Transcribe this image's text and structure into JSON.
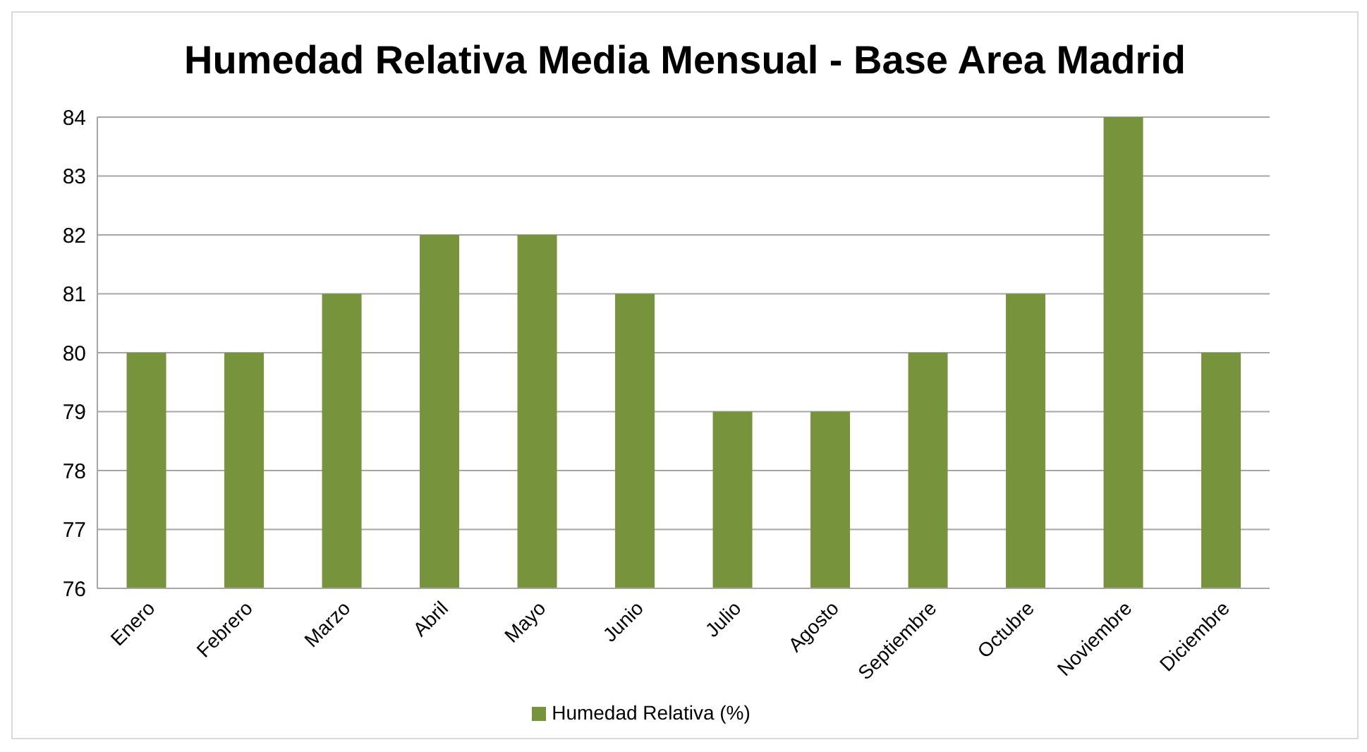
{
  "chart_data": {
    "type": "bar",
    "title": "Humedad Relativa Media Mensual - Base Area Madrid",
    "categories": [
      "Enero",
      "Febrero",
      "Marzo",
      "Abril",
      "Mayo",
      "Junio",
      "Julio",
      "Agosto",
      "Septiembre",
      "Octubre",
      "Noviembre",
      "Diciembre"
    ],
    "series": [
      {
        "name": "Humedad Relativa (%)",
        "color": "#77933c",
        "values": [
          80,
          80,
          81,
          82,
          82,
          81,
          79,
          79,
          80,
          81,
          84,
          80
        ]
      }
    ],
    "ylim": [
      76,
      84
    ],
    "yticks": [
      76,
      77,
      78,
      79,
      80,
      81,
      82,
      83,
      84
    ],
    "grid": "y",
    "legend": "bottom"
  }
}
